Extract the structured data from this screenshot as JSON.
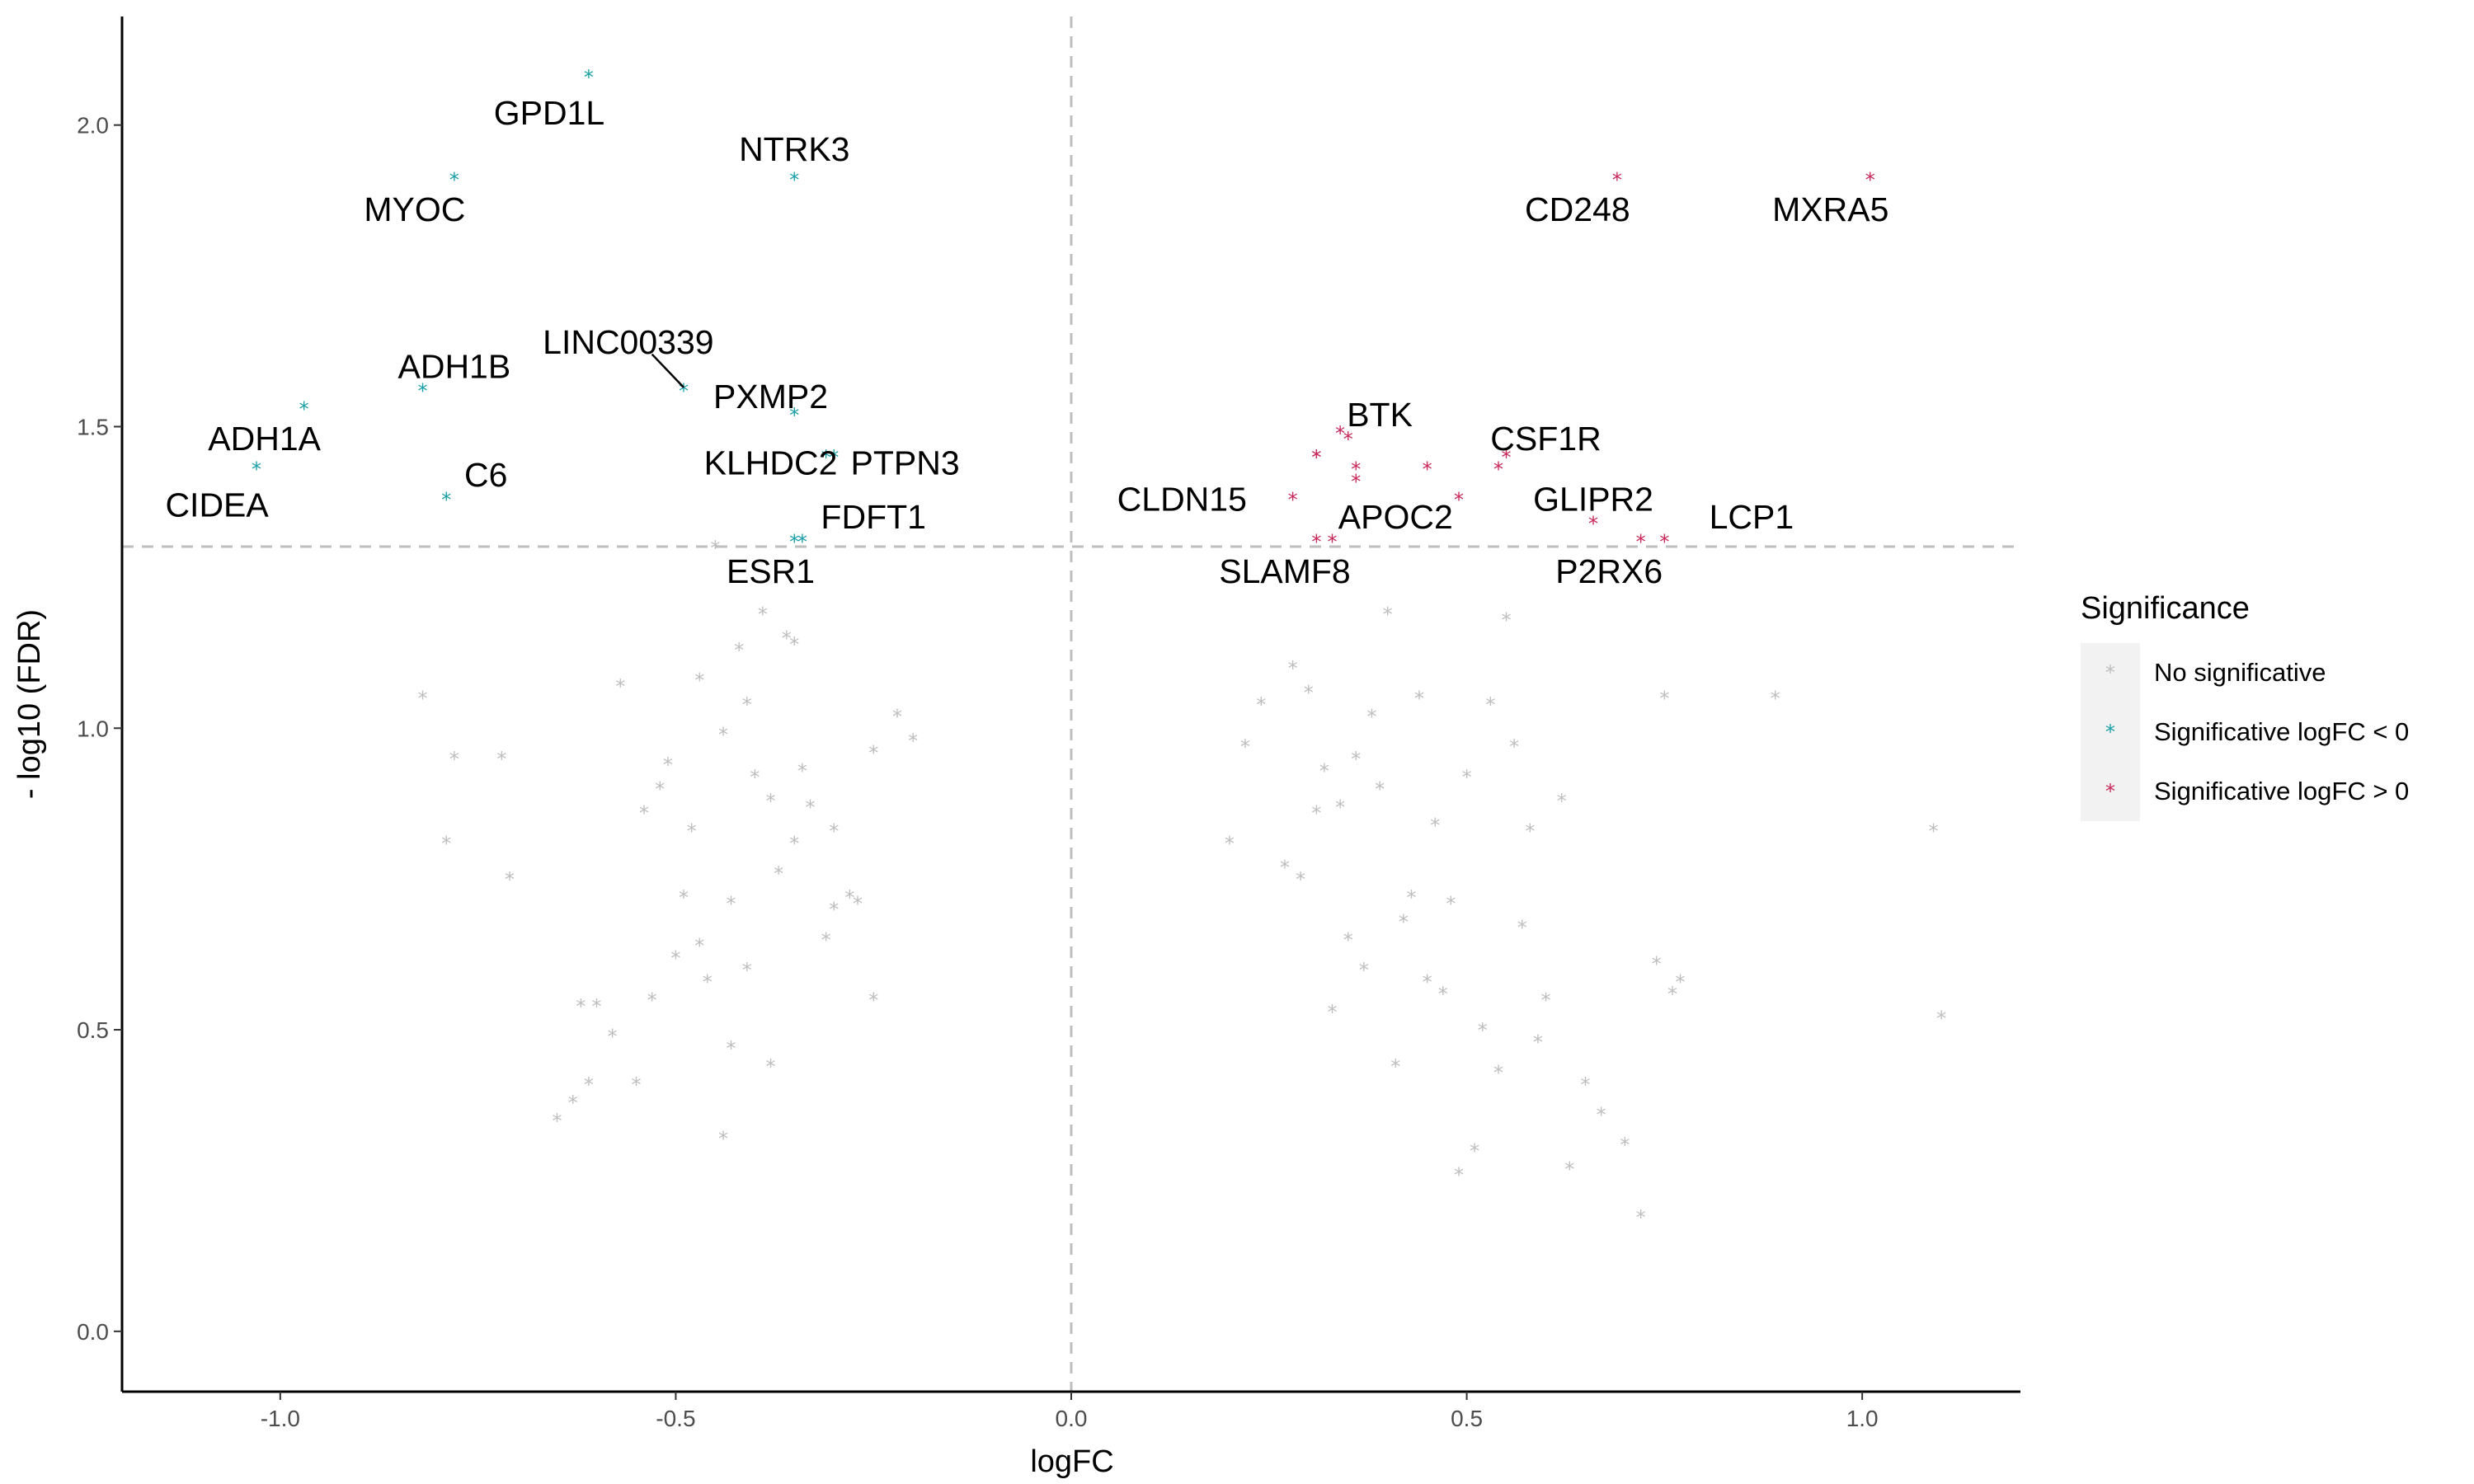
{
  "chart_data": {
    "type": "scatter",
    "xlabel": "logFC",
    "ylabel": "- log10 (FDR)",
    "xlim": [
      -1.2,
      1.2
    ],
    "ylim": [
      -0.1,
      2.18
    ],
    "x_ticks": [
      -1.0,
      -0.5,
      0.0,
      0.5,
      1.0
    ],
    "x_tick_labels": [
      "-1.0",
      "-0.5",
      "0.0",
      "0.5",
      "1.0"
    ],
    "y_ticks": [
      0.0,
      0.5,
      1.0,
      1.5,
      2.0
    ],
    "y_tick_labels": [
      "0.0",
      "0.5",
      "1.0",
      "1.5",
      "2.0"
    ],
    "thresholds": {
      "x": 0.0,
      "y": 1.301
    },
    "grid": false,
    "marker": "*",
    "legend": {
      "title": "Significance",
      "position": "right",
      "entries": [
        {
          "label": "No significative",
          "color": "#bebebe"
        },
        {
          "label": "Significative logFC < 0",
          "color": "#1a9fa6"
        },
        {
          "label": "Significative logFC > 0",
          "color": "#c8285a"
        }
      ]
    },
    "series": [
      {
        "name": "No significative",
        "color": "#bebebe",
        "x": [
          -0.82,
          -0.78,
          -0.79,
          -0.72,
          -0.71,
          -0.57,
          -0.62,
          -0.6,
          -0.53,
          -0.52,
          -0.54,
          -0.51,
          -0.48,
          -0.47,
          -0.44,
          -0.43,
          -0.41,
          -0.4,
          -0.38,
          -0.36,
          -0.35,
          -0.34,
          -0.33,
          -0.3,
          -0.28,
          -0.25,
          -0.22,
          -0.2,
          -0.42,
          -0.45,
          -0.39,
          -0.31,
          -0.27,
          -0.65,
          -0.63,
          -0.58,
          -0.55,
          -0.5,
          -0.46,
          -0.37,
          -0.61,
          -0.49,
          -0.43,
          -0.35,
          -0.47,
          -0.41,
          -0.3,
          -0.25,
          -0.44,
          -0.38,
          0.89,
          1.09,
          1.1,
          0.75,
          0.77,
          0.76,
          0.74,
          0.72,
          0.7,
          0.65,
          0.6,
          0.58,
          0.56,
          0.55,
          0.53,
          0.5,
          0.48,
          0.46,
          0.44,
          0.42,
          0.4,
          0.38,
          0.36,
          0.34,
          0.32,
          0.3,
          0.28,
          0.24,
          0.22,
          0.2,
          0.47,
          0.43,
          0.39,
          0.35,
          0.31,
          0.27,
          0.62,
          0.57,
          0.52,
          0.45,
          0.41,
          0.37,
          0.33,
          0.29,
          0.67,
          0.63,
          0.59,
          0.54,
          0.51,
          0.49
        ],
        "y": [
          1.05,
          0.95,
          0.81,
          0.95,
          0.75,
          1.07,
          0.54,
          0.54,
          0.55,
          0.9,
          0.86,
          0.94,
          0.83,
          1.08,
          0.99,
          0.71,
          1.04,
          0.92,
          0.88,
          1.15,
          1.14,
          0.93,
          0.87,
          0.83,
          0.72,
          0.96,
          1.02,
          0.98,
          1.13,
          1.3,
          1.19,
          0.65,
          0.71,
          0.35,
          0.38,
          0.49,
          0.41,
          0.62,
          0.58,
          0.76,
          0.41,
          0.72,
          0.47,
          0.81,
          0.64,
          0.6,
          0.7,
          0.55,
          0.32,
          0.44,
          1.05,
          0.83,
          0.52,
          1.05,
          0.58,
          0.56,
          0.61,
          0.19,
          0.31,
          0.41,
          0.55,
          0.83,
          0.97,
          1.18,
          1.04,
          0.92,
          0.71,
          0.84,
          1.05,
          0.68,
          1.19,
          1.02,
          0.95,
          0.87,
          0.93,
          1.06,
          1.1,
          1.04,
          0.97,
          0.81,
          0.56,
          0.72,
          0.9,
          0.65,
          0.86,
          0.77,
          0.88,
          0.67,
          0.5,
          0.58,
          0.44,
          0.6,
          0.53,
          0.75,
          0.36,
          0.27,
          0.48,
          0.43,
          0.3,
          0.26
        ]
      },
      {
        "name": "Significative logFC < 0",
        "color": "#1a9fa6",
        "x": [
          -0.61,
          -0.78,
          -0.35,
          -0.82,
          -0.97,
          -1.03,
          -0.49,
          -0.35,
          -0.31,
          -0.3,
          -0.79,
          -0.35,
          -0.34
        ],
        "y": [
          2.08,
          1.91,
          1.91,
          1.56,
          1.53,
          1.43,
          1.56,
          1.52,
          1.45,
          1.45,
          1.38,
          1.31,
          1.31
        ]
      },
      {
        "name": "Significative logFC > 0",
        "color": "#c8285a",
        "x": [
          0.69,
          1.01,
          0.34,
          0.35,
          0.31,
          0.31,
          0.36,
          0.36,
          0.45,
          0.28,
          0.55,
          0.54,
          0.49,
          0.66,
          0.31,
          0.33,
          0.72,
          0.75
        ],
        "y": [
          1.91,
          1.91,
          1.49,
          1.48,
          1.45,
          1.45,
          1.43,
          1.41,
          1.43,
          1.38,
          1.45,
          1.43,
          1.38,
          1.34,
          1.31,
          1.31,
          1.31,
          1.31
        ]
      }
    ],
    "annotations": [
      {
        "label": "GPD1L",
        "x": -0.66,
        "y": 2.02
      },
      {
        "label": "NTRK3",
        "x": -0.35,
        "y": 1.96
      },
      {
        "label": "MYOC",
        "x": -0.83,
        "y": 1.86
      },
      {
        "label": "CD248",
        "x": 0.64,
        "y": 1.86
      },
      {
        "label": "MXRA5",
        "x": 0.96,
        "y": 1.86
      },
      {
        "label": "LINC00339",
        "x": -0.56,
        "y": 1.64
      },
      {
        "label": "ADH1B",
        "x": -0.78,
        "y": 1.6
      },
      {
        "label": "PXMP2",
        "x": -0.38,
        "y": 1.55
      },
      {
        "label": "BTK",
        "x": 0.39,
        "y": 1.52
      },
      {
        "label": "ADH1A",
        "x": -1.02,
        "y": 1.48
      },
      {
        "label": "CSF1R",
        "x": 0.6,
        "y": 1.48
      },
      {
        "label": "KLHDC2",
        "x": -0.38,
        "y": 1.44
      },
      {
        "label": "PTPN3",
        "x": -0.21,
        "y": 1.44
      },
      {
        "label": "C6",
        "x": -0.74,
        "y": 1.42
      },
      {
        "label": "CLDN15",
        "x": 0.14,
        "y": 1.38
      },
      {
        "label": "GLIPR2",
        "x": 0.66,
        "y": 1.38
      },
      {
        "label": "CIDEA",
        "x": -1.08,
        "y": 1.37
      },
      {
        "label": "FDFT1",
        "x": -0.25,
        "y": 1.35
      },
      {
        "label": "APOC2",
        "x": 0.41,
        "y": 1.35
      },
      {
        "label": "LCP1",
        "x": 0.86,
        "y": 1.35
      },
      {
        "label": "ESR1",
        "x": -0.38,
        "y": 1.26
      },
      {
        "label": "SLAMF8",
        "x": 0.27,
        "y": 1.26
      },
      {
        "label": "P2RX6",
        "x": 0.68,
        "y": 1.26
      }
    ]
  }
}
